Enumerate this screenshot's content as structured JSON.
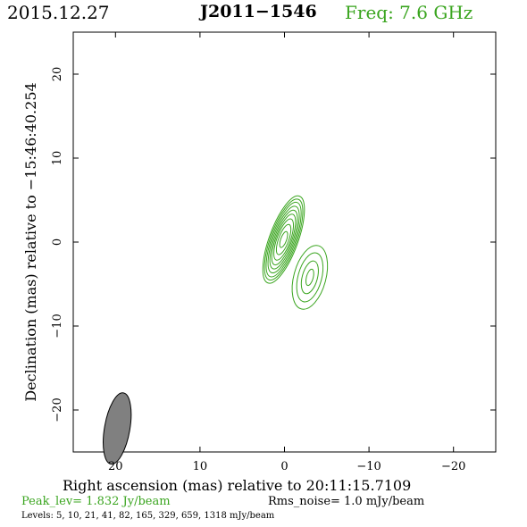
{
  "header": {
    "date": "2015.12.27",
    "source": "J2011−1546",
    "freq": "Freq: 7.6 GHz"
  },
  "footer": {
    "peak": "Peak_lev=  1.832 Jy/beam",
    "rms": "Rms_noise=  1.0 mJy/beam",
    "levels": "Levels:   5,  10,  21,  41,  82,  165,  329,  659,  1318  mJy/beam"
  },
  "colors": {
    "contour": "#3aa51f",
    "beam": "#808080",
    "axes": "#000000",
    "accent_text": "#3aa51f"
  },
  "chart_data": {
    "type": "contour",
    "title": "J2011−1546",
    "xlabel": "Right ascension (mas) relative to 20:11:15.7109",
    "ylabel": "Declination (mas) relative to −15:46:40.254",
    "xlim": [
      25,
      -25
    ],
    "ylim": [
      -25,
      25
    ],
    "xticks": [
      20,
      10,
      0,
      -10,
      -20
    ],
    "xtick_labels": [
      "20",
      "10",
      "0",
      "−10",
      "−20"
    ],
    "yticks": [
      20,
      10,
      0,
      -10,
      -20
    ],
    "ytick_labels": [
      "20",
      "10",
      "0",
      "−10",
      "−20"
    ],
    "beam": {
      "x": 19.8,
      "y": -22.2,
      "major": 4.3,
      "minor": 1.5,
      "pa_deg": 10
    },
    "components": [
      {
        "name": "core",
        "x": 0.1,
        "y": 0.3,
        "contours": [
          {
            "a": 1.7,
            "b": 5.5,
            "pa_deg": 20
          },
          {
            "a": 1.55,
            "b": 5.1,
            "pa_deg": 20
          },
          {
            "a": 1.4,
            "b": 4.7,
            "pa_deg": 20
          },
          {
            "a": 1.25,
            "b": 4.2,
            "pa_deg": 20
          },
          {
            "a": 1.1,
            "b": 3.7,
            "pa_deg": 20
          },
          {
            "a": 0.95,
            "b": 3.2,
            "pa_deg": 20
          },
          {
            "a": 0.8,
            "b": 2.6,
            "pa_deg": 20
          },
          {
            "a": 0.6,
            "b": 1.9,
            "pa_deg": 20
          },
          {
            "a": 0.35,
            "b": 1.0,
            "pa_deg": 20
          }
        ]
      },
      {
        "name": "jet",
        "x": -3.0,
        "y": -4.2,
        "contours": [
          {
            "a": 1.9,
            "b": 3.9,
            "pa_deg": 15
          },
          {
            "a": 1.4,
            "b": 3.0,
            "pa_deg": 15
          },
          {
            "a": 0.9,
            "b": 2.0,
            "pa_deg": 15
          },
          {
            "a": 0.4,
            "b": 1.0,
            "pa_deg": 15
          }
        ]
      }
    ]
  }
}
